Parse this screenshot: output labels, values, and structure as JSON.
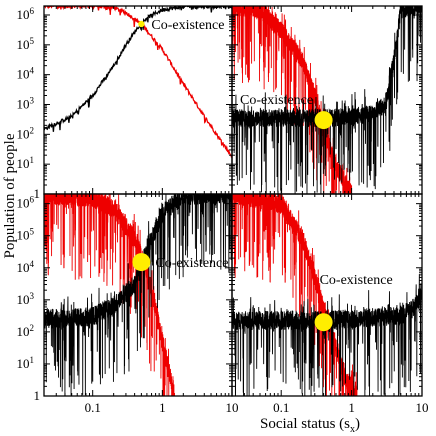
{
  "figure": {
    "xlabel": "Social status (s",
    "xlabel_sub": "x",
    "xlabel_close": ")",
    "ylabel": "Population of people"
  },
  "colors": {
    "series_red": "#ee0000",
    "series_black": "#000000",
    "marker_yellow": "#ffee00",
    "marker_small": "#ffee00"
  },
  "chart_data": [
    {
      "type": "line",
      "panel": "top-left",
      "xscale": "log",
      "yscale": "log",
      "xlim": [
        0.02,
        10
      ],
      "ylim": [
        1,
        2000000
      ],
      "noise": "low",
      "series": [
        {
          "color": "red",
          "x": [
            0.02,
            0.1,
            0.2,
            0.3,
            0.45,
            0.6,
            1,
            2,
            4,
            10
          ],
          "values": [
            2000000,
            2000000,
            1800000,
            1200000,
            600000,
            300000,
            70000,
            5000,
            400,
            18
          ]
        },
        {
          "color": "black",
          "x": [
            0.02,
            0.05,
            0.1,
            0.2,
            0.3,
            0.45,
            0.6,
            1,
            2,
            10
          ],
          "values": [
            150,
            400,
            2000,
            20000,
            100000,
            400000,
            800000,
            1500000,
            1900000,
            2000000
          ]
        }
      ],
      "annotation": {
        "text": "Co-existence",
        "x": 0.5,
        "y": 500000,
        "marker": "small"
      }
    },
    {
      "type": "line",
      "panel": "top-right",
      "xscale": "log",
      "yscale": "log",
      "xlim": [
        0.02,
        10
      ],
      "ylim": [
        1,
        2000000
      ],
      "noise": "high",
      "series": [
        {
          "color": "red",
          "x": [
            0.02,
            0.05,
            0.1,
            0.2,
            0.3,
            0.4,
            0.6,
            1
          ],
          "values": [
            2000000,
            1500000,
            300000,
            30000,
            2000,
            150,
            8,
            1
          ]
        },
        {
          "color": "black",
          "x": [
            0.02,
            0.1,
            0.5,
            1,
            2,
            3,
            4,
            5,
            10
          ],
          "values": [
            350,
            350,
            350,
            400,
            500,
            1000,
            30000,
            1500000,
            2000000
          ]
        }
      ],
      "annotation": {
        "text": "Co-existence",
        "x": 0.4,
        "y": 300,
        "marker": "large"
      }
    },
    {
      "type": "line",
      "panel": "bottom-left",
      "xscale": "log",
      "yscale": "log",
      "xlim": [
        0.02,
        10
      ],
      "ylim": [
        1,
        2000000
      ],
      "noise": "high",
      "series": [
        {
          "color": "red",
          "x": [
            0.02,
            0.1,
            0.2,
            0.4,
            0.6,
            0.8,
            1,
            1.5
          ],
          "values": [
            2000000,
            1500000,
            700000,
            80000,
            8000,
            500,
            50,
            1
          ]
        },
        {
          "color": "black",
          "x": [
            0.02,
            0.1,
            0.2,
            0.4,
            0.5,
            0.7,
            1,
            2,
            10
          ],
          "values": [
            250,
            300,
            700,
            3000,
            12000,
            80000,
            500000,
            1800000,
            2000000
          ]
        }
      ],
      "annotation": {
        "text": "Co-existence",
        "x": 0.5,
        "y": 15000,
        "marker": "large"
      }
    },
    {
      "type": "line",
      "panel": "bottom-right",
      "xscale": "log",
      "yscale": "log",
      "xlim": [
        0.02,
        10
      ],
      "ylim": [
        1,
        2000000
      ],
      "noise": "high",
      "series": [
        {
          "color": "red",
          "x": [
            0.02,
            0.1,
            0.2,
            0.3,
            0.4,
            0.6,
            0.8,
            1.2
          ],
          "values": [
            2000000,
            1000000,
            80000,
            5000,
            500,
            30,
            4,
            1
          ]
        },
        {
          "color": "black",
          "x": [
            0.02,
            0.1,
            0.5,
            1,
            2,
            5,
            8,
            10
          ],
          "values": [
            220,
            230,
            230,
            260,
            280,
            320,
            600,
            2000
          ]
        }
      ],
      "annotation": {
        "text": "Co-existence",
        "x": 0.4,
        "y": 200,
        "marker": "large"
      }
    }
  ],
  "ticks": {
    "x": [
      {
        "value": 0.1,
        "label": "0.1"
      },
      {
        "value": 1,
        "label": "1"
      },
      {
        "value": 10,
        "label": "10"
      }
    ],
    "y": [
      {
        "value": 1,
        "label": "1",
        "exp": ""
      },
      {
        "value": 10,
        "label": "10",
        "exp": "1"
      },
      {
        "value": 100,
        "label": "10",
        "exp": "2"
      },
      {
        "value": 1000,
        "label": "10",
        "exp": "3"
      },
      {
        "value": 10000,
        "label": "10",
        "exp": "4"
      },
      {
        "value": 100000,
        "label": "10",
        "exp": "5"
      },
      {
        "value": 1000000,
        "label": "10",
        "exp": "6"
      }
    ]
  }
}
